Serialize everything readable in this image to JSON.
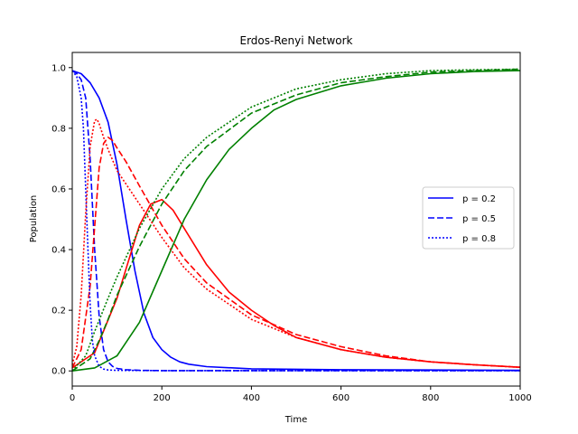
{
  "chart_data": {
    "type": "line",
    "title": "Erdos-Renyi Network",
    "xlabel": "Time",
    "ylabel": "Population",
    "xlim": [
      0,
      1000
    ],
    "ylim": [
      -0.05,
      1.05
    ],
    "xticks": [
      0,
      200,
      400,
      600,
      800,
      1000
    ],
    "yticks": [
      0.0,
      0.2,
      0.4,
      0.6,
      0.8,
      1.0
    ],
    "xtick_labels": [
      "0",
      "200",
      "400",
      "600",
      "800",
      "1000"
    ],
    "ytick_labels": [
      "0.0",
      "0.2",
      "0.4",
      "0.6",
      "0.8",
      "1.0"
    ],
    "grid": false,
    "legend_position": "center-right",
    "legend": [
      {
        "label": "p = 0.2",
        "color": "#0000ff",
        "style": "solid"
      },
      {
        "label": "p = 0.5",
        "color": "#0000ff",
        "style": "dashed"
      },
      {
        "label": "p = 0.8",
        "color": "#0000ff",
        "style": "dotted"
      }
    ],
    "series": [
      {
        "color": "#0000ff",
        "style": "solid",
        "x": [
          0,
          20,
          40,
          60,
          80,
          100,
          120,
          140,
          160,
          180,
          200,
          220,
          240,
          260,
          300,
          400,
          600,
          800,
          1000
        ],
        "y": [
          0.99,
          0.98,
          0.95,
          0.9,
          0.82,
          0.68,
          0.5,
          0.33,
          0.19,
          0.11,
          0.07,
          0.045,
          0.03,
          0.022,
          0.014,
          0.007,
          0.004,
          0.003,
          0.002
        ]
      },
      {
        "color": "#ff0000",
        "style": "solid",
        "x": [
          0,
          50,
          100,
          150,
          175,
          200,
          225,
          250,
          300,
          350,
          400,
          450,
          500,
          600,
          700,
          800,
          900,
          1000
        ],
        "y": [
          0.01,
          0.06,
          0.24,
          0.48,
          0.55,
          0.565,
          0.53,
          0.47,
          0.35,
          0.26,
          0.2,
          0.15,
          0.11,
          0.07,
          0.045,
          0.03,
          0.02,
          0.012
        ]
      },
      {
        "color": "#008000",
        "style": "solid",
        "x": [
          0,
          50,
          100,
          150,
          200,
          250,
          300,
          350,
          400,
          450,
          500,
          600,
          700,
          800,
          900,
          1000
        ],
        "y": [
          0.0,
          0.01,
          0.05,
          0.16,
          0.33,
          0.5,
          0.63,
          0.73,
          0.8,
          0.86,
          0.895,
          0.94,
          0.965,
          0.98,
          0.987,
          0.99
        ]
      },
      {
        "color": "#0000ff",
        "style": "dashed",
        "x": [
          0,
          10,
          20,
          30,
          40,
          50,
          60,
          70,
          80,
          90,
          100,
          120,
          150,
          200,
          400,
          600,
          800,
          1000
        ],
        "y": [
          0.99,
          0.98,
          0.96,
          0.9,
          0.7,
          0.4,
          0.18,
          0.07,
          0.03,
          0.015,
          0.008,
          0.004,
          0.002,
          0.001,
          0.001,
          0.001,
          0.001,
          0.001
        ]
      },
      {
        "color": "#ff0000",
        "style": "dashed",
        "x": [
          0,
          20,
          40,
          60,
          70,
          80,
          90,
          100,
          120,
          150,
          200,
          250,
          300,
          400,
          500,
          600,
          700,
          800,
          900,
          1000
        ],
        "y": [
          0.01,
          0.07,
          0.28,
          0.67,
          0.75,
          0.77,
          0.76,
          0.735,
          0.69,
          0.61,
          0.48,
          0.37,
          0.29,
          0.185,
          0.12,
          0.08,
          0.05,
          0.03,
          0.02,
          0.012
        ]
      },
      {
        "color": "#008000",
        "style": "dashed",
        "x": [
          0,
          40,
          60,
          80,
          100,
          150,
          200,
          250,
          300,
          400,
          500,
          600,
          700,
          800,
          900,
          1000
        ],
        "y": [
          0.0,
          0.04,
          0.1,
          0.17,
          0.25,
          0.41,
          0.55,
          0.66,
          0.74,
          0.85,
          0.91,
          0.95,
          0.97,
          0.985,
          0.99,
          0.995
        ]
      },
      {
        "color": "#0000ff",
        "style": "dotted",
        "x": [
          0,
          10,
          20,
          25,
          30,
          35,
          40,
          45,
          50,
          60,
          70,
          80,
          100,
          200,
          400,
          600,
          800,
          1000
        ],
        "y": [
          0.99,
          0.97,
          0.9,
          0.8,
          0.6,
          0.4,
          0.22,
          0.1,
          0.05,
          0.015,
          0.006,
          0.003,
          0.002,
          0.001,
          0.001,
          0.001,
          0.001,
          0.001
        ]
      },
      {
        "color": "#ff0000",
        "style": "dotted",
        "x": [
          0,
          10,
          20,
          30,
          40,
          50,
          55,
          60,
          70,
          80,
          100,
          150,
          200,
          250,
          300,
          400,
          500,
          600,
          700,
          800,
          900,
          1000
        ],
        "y": [
          0.02,
          0.08,
          0.25,
          0.52,
          0.74,
          0.825,
          0.83,
          0.815,
          0.77,
          0.73,
          0.66,
          0.55,
          0.44,
          0.34,
          0.27,
          0.17,
          0.11,
          0.07,
          0.045,
          0.03,
          0.02,
          0.012
        ]
      },
      {
        "color": "#008000",
        "style": "dotted",
        "x": [
          0,
          30,
          50,
          80,
          100,
          150,
          200,
          250,
          300,
          400,
          500,
          600,
          700,
          800,
          900,
          1000
        ],
        "y": [
          0.0,
          0.05,
          0.13,
          0.24,
          0.31,
          0.47,
          0.6,
          0.7,
          0.77,
          0.87,
          0.93,
          0.96,
          0.98,
          0.99,
          0.993,
          0.995
        ]
      }
    ]
  }
}
